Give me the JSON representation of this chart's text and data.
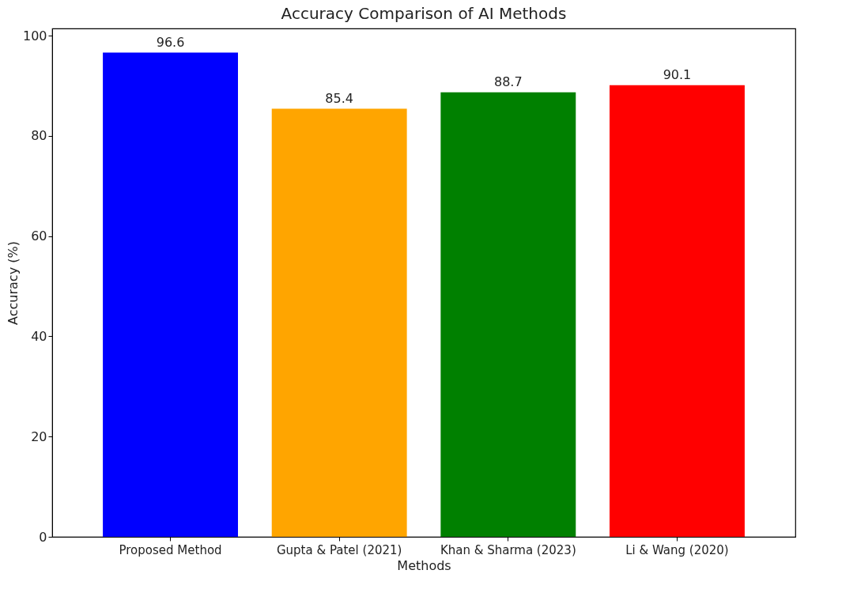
{
  "chart_data": {
    "type": "bar",
    "title": "Accuracy Comparison of AI Methods",
    "xlabel": "Methods",
    "ylabel": "Accuracy (%)",
    "categories": [
      "Proposed Method",
      "Gupta & Patel (2021)",
      "Khan & Sharma (2023)",
      "Li & Wang (2020)"
    ],
    "values": [
      96.6,
      85.4,
      88.7,
      90.1
    ],
    "colors": [
      "#0000ff",
      "#ffa500",
      "#008000",
      "#ff0000"
    ],
    "ylim": [
      0,
      101.43
    ],
    "yticks": [
      0,
      20,
      40,
      60,
      80,
      100
    ],
    "grid": false,
    "data_labels": true
  }
}
